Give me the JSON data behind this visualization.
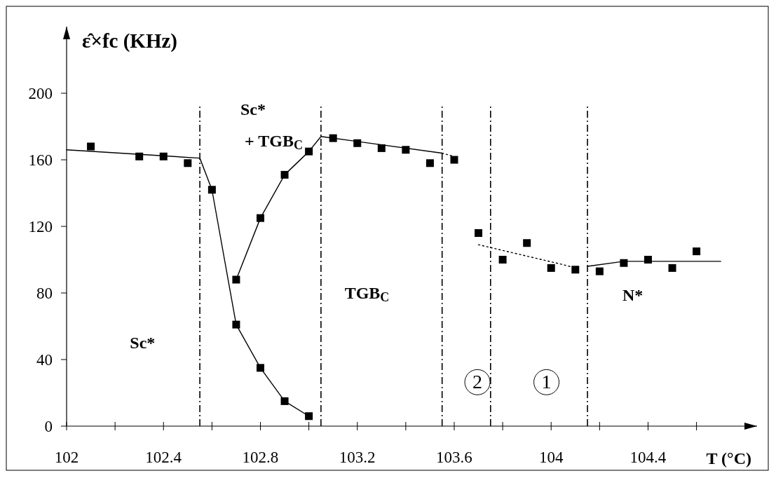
{
  "chart_data": {
    "type": "scatter",
    "xlabel": "T (°C)",
    "ylabel": "ε̂×fc (KHz)",
    "xlim": [
      102,
      104.85
    ],
    "ylim": [
      0,
      240
    ],
    "xticks": [
      102,
      {
        "value": 102.2,
        "label": null
      },
      102.4,
      {
        "value": 102.6,
        "label": null
      },
      102.8,
      {
        "value": 103,
        "label": null
      },
      103.2,
      {
        "value": 103.4,
        "label": null
      },
      103.6,
      {
        "value": 103.8,
        "label": null
      },
      104,
      {
        "value": 104.2,
        "label": null
      },
      104.4,
      {
        "value": 104.6,
        "label": null
      }
    ],
    "yticks": [
      0,
      40,
      80,
      120,
      160,
      200
    ],
    "grid": false,
    "series": [
      {
        "marker": "square",
        "color": "#000000",
        "x": [
          102.1,
          102.3,
          102.4,
          102.5,
          102.6,
          102.7,
          102.7,
          102.8,
          102.8,
          102.9,
          102.9,
          103.0,
          103.0,
          103.1,
          103.2,
          103.3,
          103.4,
          103.5,
          103.6,
          103.7,
          103.8,
          103.9,
          104.0,
          104.1,
          104.2,
          104.3,
          104.4,
          104.5,
          104.6
        ],
        "values": [
          168,
          162,
          162,
          158,
          142,
          88,
          61,
          35,
          125,
          151,
          15,
          165,
          6,
          173,
          170,
          167,
          166,
          158,
          160,
          116,
          100,
          110,
          95,
          94,
          93,
          98,
          100,
          95,
          105
        ]
      },
      {
        "type": "line",
        "marker": "none",
        "line_style": "solid",
        "color": "#000000",
        "x": [
          102,
          102.55,
          102.6,
          102.7,
          102.8,
          102.9,
          103.0
        ],
        "values": [
          166,
          161,
          142,
          61,
          35,
          15,
          6
        ]
      },
      {
        "type": "line",
        "marker": "none",
        "line_style": "solid",
        "color": "#000000",
        "x": [
          102.7,
          102.8,
          102.9,
          103.0,
          103.05,
          103.55
        ],
        "values": [
          88,
          125,
          151,
          165,
          174,
          164
        ]
      },
      {
        "type": "line",
        "marker": "none",
        "line_style": "dotted",
        "color": "#000000",
        "x": [
          103.55,
          103.6
        ],
        "values": [
          164,
          162
        ]
      },
      {
        "type": "line",
        "marker": "none",
        "line_style": "dotted",
        "color": "#000000",
        "x": [
          103.7,
          104.05,
          104.1
        ],
        "values": [
          109,
          97,
          95
        ]
      },
      {
        "type": "line",
        "marker": "none",
        "line_style": "solid",
        "color": "#000000",
        "x": [
          104.15,
          104.3,
          104.7
        ],
        "values": [
          96,
          99,
          99
        ]
      }
    ],
    "ref_lines": [
      {
        "axis": "x",
        "value": 102.55,
        "line_style": "dashed",
        "color": "#000000"
      },
      {
        "axis": "x",
        "value": 103.05,
        "line_style": "dashed",
        "color": "#000000"
      },
      {
        "axis": "x",
        "value": 103.55,
        "line_style": "dashed",
        "color": "#000000"
      },
      {
        "axis": "x",
        "value": 103.75,
        "line_style": "dashed",
        "color": "#000000"
      },
      {
        "axis": "x",
        "value": 104.15,
        "line_style": "dashed",
        "color": "#000000"
      }
    ],
    "annotations": [
      "Sc*",
      "Sc*",
      "+ TGB$_{C}$",
      "TGB$_{C}$",
      "2",
      "1",
      "N*"
    ]
  }
}
